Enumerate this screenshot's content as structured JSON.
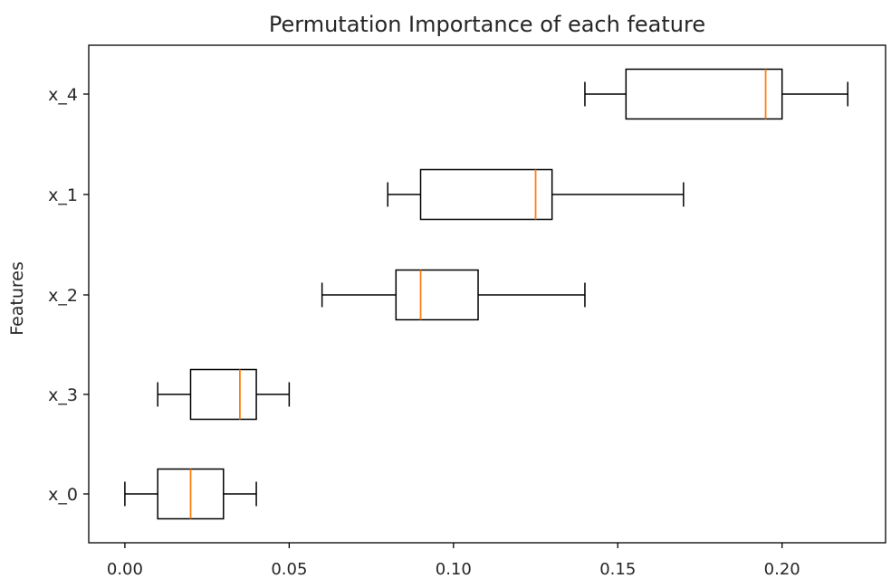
{
  "chart_data": {
    "type": "boxplot",
    "orientation": "horizontal",
    "title": "Permutation Importance of each feature",
    "xlabel": "",
    "ylabel": "Features",
    "xlim": [
      -0.011,
      0.2315
    ],
    "x_ticks": [
      0.0,
      0.05,
      0.1,
      0.15,
      0.2
    ],
    "x_tick_labels": [
      "0.00",
      "0.05",
      "0.10",
      "0.15",
      "0.20"
    ],
    "categories": [
      "x_0",
      "x_3",
      "x_2",
      "x_1",
      "x_4"
    ],
    "boxes": [
      {
        "label": "x_0",
        "whisker_low": 0.0,
        "q1": 0.01,
        "median": 0.02,
        "q3": 0.03,
        "whisker_high": 0.04
      },
      {
        "label": "x_3",
        "whisker_low": 0.01,
        "q1": 0.02,
        "median": 0.035,
        "q3": 0.04,
        "whisker_high": 0.05
      },
      {
        "label": "x_2",
        "whisker_low": 0.06,
        "q1": 0.0825,
        "median": 0.09,
        "q3": 0.1075,
        "whisker_high": 0.14
      },
      {
        "label": "x_1",
        "whisker_low": 0.08,
        "q1": 0.09,
        "median": 0.125,
        "q3": 0.13,
        "whisker_high": 0.17
      },
      {
        "label": "x_4",
        "whisker_low": 0.14,
        "q1": 0.1525,
        "median": 0.195,
        "q3": 0.2,
        "whisker_high": 0.22
      }
    ],
    "grid": false,
    "colors": {
      "box": "#000000",
      "median": "#ff7f0e",
      "axes": "#000000",
      "text": "#262626"
    }
  }
}
